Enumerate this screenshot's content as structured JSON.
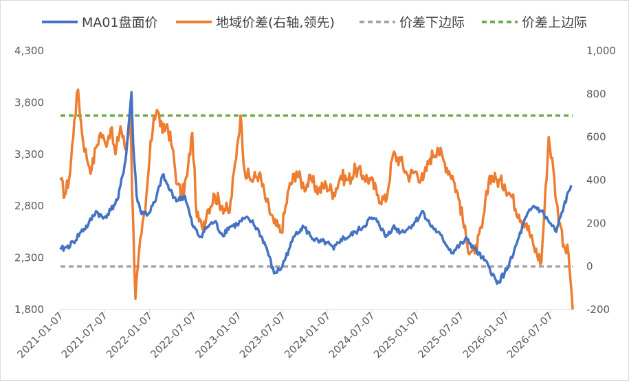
{
  "chart_data": {
    "type": "line",
    "legend_position": "top",
    "grid": false,
    "x_axis": {
      "ticks": [
        "2021-01-07",
        "2021-07-07",
        "2022-01-07",
        "2022-07-07",
        "2023-01-07",
        "2023-07-07",
        "2024-01-07",
        "2024-07-07",
        "2025-01-07",
        "2025-07-07",
        "2026-01-07",
        "2026-07-07"
      ],
      "range": [
        "2021-01-07",
        "2026-10-07"
      ]
    },
    "y_left": {
      "min": 1800,
      "max": 4300,
      "ticks": [
        "1,800",
        "2,300",
        "2,800",
        "3,300",
        "3,800",
        "4,300"
      ]
    },
    "y_right": {
      "min": -200,
      "max": 1000,
      "ticks": [
        "-200",
        "0",
        "200",
        "400",
        "600",
        "800",
        "1,000"
      ]
    },
    "series": [
      {
        "name": "MA01盘面价",
        "axis": "left",
        "color": "#4472C4",
        "points": [
          [
            "2021-01-07",
            2380
          ],
          [
            "2021-02-01",
            2400
          ],
          [
            "2021-03-01",
            2450
          ],
          [
            "2021-04-01",
            2550
          ],
          [
            "2021-05-01",
            2620
          ],
          [
            "2021-06-01",
            2750
          ],
          [
            "2021-07-01",
            2680
          ],
          [
            "2021-08-01",
            2760
          ],
          [
            "2021-09-01",
            2880
          ],
          [
            "2021-10-01",
            3250
          ],
          [
            "2021-10-25",
            3900
          ],
          [
            "2021-11-01",
            3400
          ],
          [
            "2021-11-15",
            2900
          ],
          [
            "2021-12-01",
            2750
          ],
          [
            "2022-01-01",
            2720
          ],
          [
            "2022-02-01",
            2850
          ],
          [
            "2022-03-01",
            3100
          ],
          [
            "2022-04-01",
            2950
          ],
          [
            "2022-05-01",
            2850
          ],
          [
            "2022-06-01",
            2900
          ],
          [
            "2022-07-01",
            2620
          ],
          [
            "2022-08-01",
            2500
          ],
          [
            "2022-09-01",
            2600
          ],
          [
            "2022-10-01",
            2650
          ],
          [
            "2022-11-01",
            2520
          ],
          [
            "2022-12-01",
            2600
          ],
          [
            "2023-01-01",
            2620
          ],
          [
            "2023-02-01",
            2680
          ],
          [
            "2023-03-01",
            2650
          ],
          [
            "2023-04-01",
            2550
          ],
          [
            "2023-05-01",
            2400
          ],
          [
            "2023-06-01",
            2150
          ],
          [
            "2023-07-01",
            2200
          ],
          [
            "2023-08-01",
            2380
          ],
          [
            "2023-09-01",
            2550
          ],
          [
            "2023-10-01",
            2600
          ],
          [
            "2023-11-01",
            2500
          ],
          [
            "2023-12-01",
            2450
          ],
          [
            "2024-01-01",
            2450
          ],
          [
            "2024-02-01",
            2380
          ],
          [
            "2024-03-01",
            2480
          ],
          [
            "2024-04-01",
            2500
          ],
          [
            "2024-05-01",
            2550
          ],
          [
            "2024-06-01",
            2600
          ],
          [
            "2024-07-01",
            2680
          ],
          [
            "2024-08-01",
            2650
          ],
          [
            "2024-09-01",
            2500
          ],
          [
            "2024-10-01",
            2600
          ],
          [
            "2024-11-01",
            2550
          ],
          [
            "2024-12-01",
            2580
          ],
          [
            "2025-01-01",
            2650
          ],
          [
            "2025-02-01",
            2750
          ],
          [
            "2025-03-01",
            2620
          ],
          [
            "2025-04-01",
            2550
          ],
          [
            "2025-05-01",
            2450
          ],
          [
            "2025-06-01",
            2350
          ],
          [
            "2025-07-01",
            2420
          ],
          [
            "2025-08-01",
            2480
          ],
          [
            "2025-09-01",
            2380
          ],
          [
            "2025-10-01",
            2300
          ],
          [
            "2025-11-01",
            2200
          ],
          [
            "2025-12-01",
            2050
          ],
          [
            "2026-01-01",
            2150
          ],
          [
            "2026-02-01",
            2300
          ],
          [
            "2026-03-01",
            2500
          ],
          [
            "2026-04-01",
            2700
          ],
          [
            "2026-05-01",
            2800
          ],
          [
            "2026-06-01",
            2750
          ],
          [
            "2026-07-01",
            2650
          ],
          [
            "2026-08-01",
            2550
          ],
          [
            "2026-09-01",
            2800
          ],
          [
            "2026-10-01",
            3000
          ]
        ]
      },
      {
        "name": "地域价差(右轴,领先)",
        "axis": "right",
        "color": "#ED7D31",
        "points": [
          [
            "2021-01-07",
            400
          ],
          [
            "2021-01-25",
            330
          ],
          [
            "2021-02-15",
            430
          ],
          [
            "2021-03-05",
            680
          ],
          [
            "2021-03-20",
            820
          ],
          [
            "2021-04-05",
            620
          ],
          [
            "2021-04-25",
            500
          ],
          [
            "2021-05-15",
            450
          ],
          [
            "2021-06-01",
            550
          ],
          [
            "2021-06-20",
            620
          ],
          [
            "2021-07-10",
            570
          ],
          [
            "2021-08-01",
            640
          ],
          [
            "2021-08-20",
            520
          ],
          [
            "2021-09-10",
            650
          ],
          [
            "2021-10-01",
            540
          ],
          [
            "2021-10-20",
            700
          ],
          [
            "2021-11-01",
            200
          ],
          [
            "2021-11-10",
            -150
          ],
          [
            "2021-11-20",
            0
          ],
          [
            "2021-12-05",
            150
          ],
          [
            "2021-12-20",
            250
          ],
          [
            "2022-01-07",
            500
          ],
          [
            "2022-01-25",
            700
          ],
          [
            "2022-02-10",
            720
          ],
          [
            "2022-03-01",
            620
          ],
          [
            "2022-03-20",
            660
          ],
          [
            "2022-04-10",
            550
          ],
          [
            "2022-05-01",
            380
          ],
          [
            "2022-05-20",
            330
          ],
          [
            "2022-06-10",
            420
          ],
          [
            "2022-07-01",
            620
          ],
          [
            "2022-07-20",
            230
          ],
          [
            "2022-08-10",
            180
          ],
          [
            "2022-09-01",
            260
          ],
          [
            "2022-10-01",
            330
          ],
          [
            "2022-11-01",
            280
          ],
          [
            "2022-12-01",
            250
          ],
          [
            "2023-01-01",
            560
          ],
          [
            "2023-01-15",
            700
          ],
          [
            "2023-02-01",
            440
          ],
          [
            "2023-03-01",
            400
          ],
          [
            "2023-04-01",
            430
          ],
          [
            "2023-05-01",
            300
          ],
          [
            "2023-06-01",
            200
          ],
          [
            "2023-07-01",
            160
          ],
          [
            "2023-08-01",
            360
          ],
          [
            "2023-09-01",
            440
          ],
          [
            "2023-10-01",
            370
          ],
          [
            "2023-11-01",
            400
          ],
          [
            "2023-12-01",
            350
          ],
          [
            "2024-01-01",
            380
          ],
          [
            "2024-02-01",
            340
          ],
          [
            "2024-03-01",
            420
          ],
          [
            "2024-04-01",
            400
          ],
          [
            "2024-05-01",
            450
          ],
          [
            "2024-06-01",
            420
          ],
          [
            "2024-07-01",
            400
          ],
          [
            "2024-08-01",
            330
          ],
          [
            "2024-09-01",
            300
          ],
          [
            "2024-10-01",
            520
          ],
          [
            "2024-11-01",
            490
          ],
          [
            "2024-12-01",
            420
          ],
          [
            "2025-01-01",
            440
          ],
          [
            "2025-02-01",
            400
          ],
          [
            "2025-03-01",
            500
          ],
          [
            "2025-04-01",
            550
          ],
          [
            "2025-05-01",
            480
          ],
          [
            "2025-06-01",
            420
          ],
          [
            "2025-07-01",
            300
          ],
          [
            "2025-08-01",
            100
          ],
          [
            "2025-09-01",
            60
          ],
          [
            "2025-10-01",
            180
          ],
          [
            "2025-11-01",
            420
          ],
          [
            "2025-12-01",
            400
          ],
          [
            "2026-01-01",
            380
          ],
          [
            "2026-02-01",
            320
          ],
          [
            "2026-03-01",
            240
          ],
          [
            "2026-04-01",
            200
          ],
          [
            "2026-05-01",
            90
          ],
          [
            "2026-06-01",
            20
          ],
          [
            "2026-07-01",
            600
          ],
          [
            "2026-07-20",
            450
          ],
          [
            "2026-08-01",
            300
          ],
          [
            "2026-08-20",
            180
          ],
          [
            "2026-09-01",
            100
          ],
          [
            "2026-09-20",
            60
          ],
          [
            "2026-10-01",
            -100
          ],
          [
            "2026-10-07",
            -200
          ]
        ]
      },
      {
        "name": "价差下边际",
        "axis": "right",
        "color": "#A5A5A5",
        "style": "dashed",
        "value": 0
      },
      {
        "name": "价差上边际",
        "axis": "right",
        "color": "#70AD47",
        "style": "dashed",
        "value": 700
      }
    ]
  }
}
